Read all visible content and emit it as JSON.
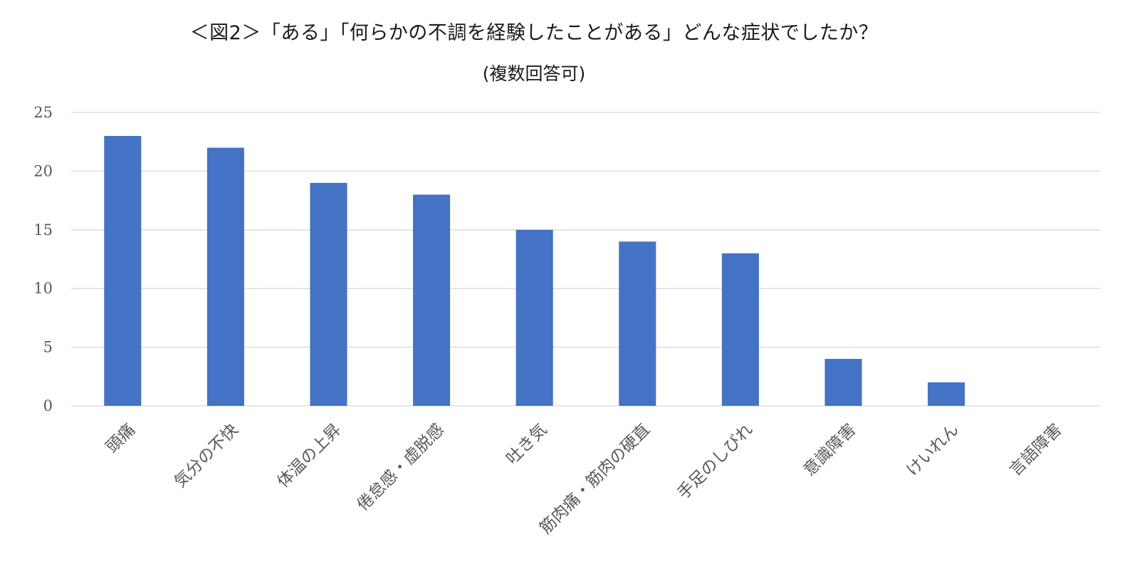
{
  "chart_data": {
    "type": "bar",
    "title": "＜図2＞「ある」「何らかの不調を経験したことがある」どんな症状でしたか？",
    "subtitle": "(複数回答可)",
    "categories": [
      "頭痛",
      "気分の不快",
      "体温の上昇",
      "倦怠感・虚脱感",
      "吐き気",
      "筋肉痛・筋肉の硬直",
      "手足のしびれ",
      "意識障害",
      "けいれん",
      "言語障害"
    ],
    "values": [
      23,
      22,
      19,
      18,
      15,
      14,
      13,
      4,
      2,
      0
    ],
    "yticks": [
      "0",
      "5",
      "10",
      "15",
      "20",
      "25"
    ],
    "ylim": [
      0,
      25
    ],
    "xlabel": "",
    "ylabel": "",
    "grid": true,
    "legend": "none",
    "bar_color": "#4472C4",
    "grid_color": "#D9D9D9",
    "text_color": "#595959"
  }
}
